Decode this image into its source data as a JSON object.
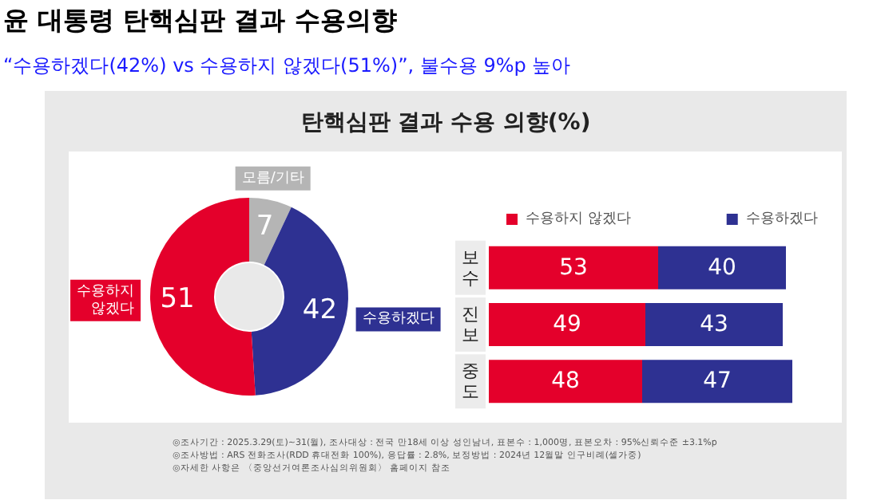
{
  "chart_data": [
    {
      "type": "donut",
      "title": "윤 대통령 탄핵심판 결과 수용의향",
      "subtitle": "“수용하겠다(42%) vs 수용하지 않겠다(51%)”, 불수용 9%p 높아",
      "annotations": [
        "탄핵심판 결과 수용 의향(%)"
      ],
      "categories": [
        "모름/기타",
        "수용하겠다",
        "수용하지\n않겠다"
      ],
      "values": [
        7,
        42,
        51
      ],
      "colors": [
        "#b5b5b5",
        "#2e3192",
        "#e4002b"
      ],
      "data_labels": true
    },
    {
      "type": "bar",
      "orientation": "horizontal",
      "stacked": true,
      "legend": "top",
      "data_labels": true,
      "categories": [
        "보수",
        "진보",
        "중도"
      ],
      "series": [
        {
          "name": "수용하지 않겠다",
          "color": "#e4002b",
          "values": [
            53,
            49,
            48
          ]
        },
        {
          "name": "수용하겠다",
          "color": "#2e3192",
          "values": [
            40,
            43,
            47
          ]
        }
      ],
      "annotations": [
        "◎조사기간 : 2025.3.29(토)~31(월), 조사대상 : 전국 만18세 이상 성인남녀, 표본수 : 1,000명, 표본오차 : 95%신뢰수준 ±3.1%p",
        "◎조사방법 : ARS 전화조사(RDD 휴대전화 100%), 응답률 : 2.8%, 보정방법 : 2024년 12월말 인구비례(셀가중)",
        "◎자세한 사항은 〈중앙선거여론조사심의위원회〉 홈페이지 참조"
      ]
    }
  ]
}
